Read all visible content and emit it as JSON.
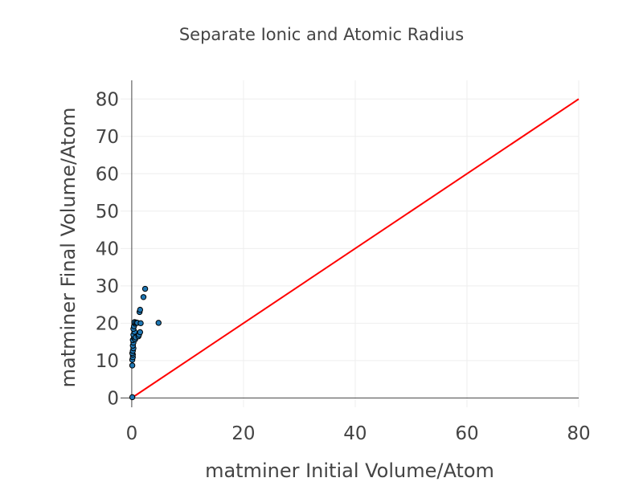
{
  "chart_data": {
    "type": "scatter",
    "title": "Separate Ionic and Atomic Radius",
    "xlabel": "matminer Initial Volume/Atom",
    "ylabel": "matminer Final Volume/Atom",
    "xlim": [
      -2,
      80
    ],
    "ylim": [
      -2.5,
      85
    ],
    "xticks": [
      0,
      20,
      40,
      60,
      80
    ],
    "yticks": [
      0,
      10,
      20,
      30,
      40,
      50,
      60,
      70,
      80
    ],
    "grid": true,
    "series": [
      {
        "mode": "markers",
        "color": "#1f77b4",
        "x": [
          0.1,
          0.1,
          0.1,
          0.2,
          0.2,
          0.1,
          0.2,
          0.3,
          0.2,
          0.3,
          0.2,
          0.4,
          0.3,
          0.5,
          0.3,
          0.4,
          0.6,
          0.5,
          0.6,
          0.8,
          0.7,
          1.0,
          1.2,
          1.3,
          1.5,
          1.4,
          1.5,
          1.6,
          2.1,
          2.4,
          4.8
        ],
        "y": [
          0.2,
          8.7,
          10.2,
          10.9,
          11.6,
          12.0,
          12.6,
          13.3,
          14.0,
          14.8,
          15.5,
          16.1,
          16.9,
          17.7,
          18.5,
          19.2,
          19.9,
          20.3,
          15.7,
          20.2,
          16.2,
          20.1,
          16.5,
          16.9,
          17.6,
          23.0,
          23.6,
          20.0,
          27.0,
          29.2,
          20.1
        ]
      },
      {
        "mode": "lines",
        "color": "#ff0000",
        "x": [
          0,
          80
        ],
        "y": [
          0,
          80
        ]
      }
    ]
  }
}
